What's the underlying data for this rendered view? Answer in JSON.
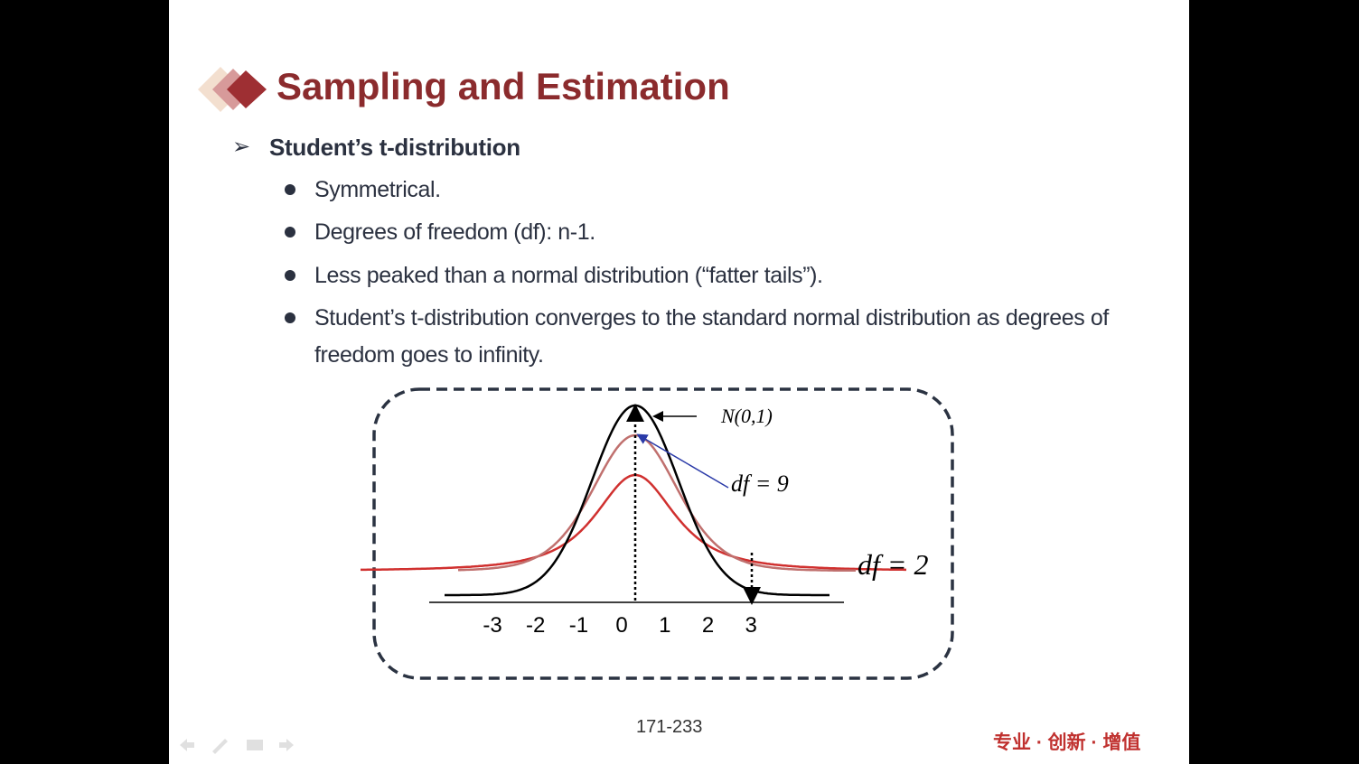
{
  "slide": {
    "title": "Sampling and Estimation",
    "heading": "Student’s t-distribution",
    "bullets": [
      "Symmetrical.",
      "Degrees of freedom (df): n-1.",
      "Less peaked than a normal distribution (“fatter tails”).",
      "Student’s t-distribution converges to the standard normal distribution as degrees of freedom goes to infinity."
    ],
    "figure": {
      "axis_labels": [
        "-3",
        "-2",
        "-1",
        "0",
        "1",
        "2",
        "3"
      ],
      "normal_label": "N(0,1)",
      "df9_label": "df = 9",
      "df2_label": "df = 2"
    },
    "page_number": "171-233",
    "footer": "专业 · 创新 · 增值"
  }
}
